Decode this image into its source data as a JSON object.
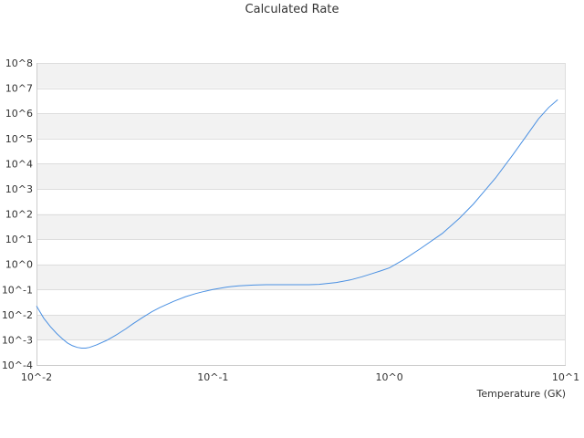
{
  "chart_data": {
    "type": "line",
    "title": "Calculated Rate",
    "xlabel": "Temperature (GK)",
    "ylabel": "",
    "x_scale": "log",
    "y_scale": "log",
    "xlim": [
      0.01,
      10
    ],
    "ylim": [
      0.0001,
      100000000
    ],
    "x_ticks": [
      "10^-2",
      "10^-1",
      "10^0",
      "10^1"
    ],
    "x_tick_values": [
      0.01,
      0.1,
      1,
      10
    ],
    "y_ticks": [
      "10^-4",
      "10^-3",
      "10^-2",
      "10^-1",
      "10^0",
      "10^1",
      "10^2",
      "10^3",
      "10^4",
      "10^5",
      "10^6",
      "10^7",
      "10^8"
    ],
    "y_tick_values": [
      0.0001,
      0.001,
      0.01,
      0.1,
      1,
      10,
      100,
      1000,
      10000,
      100000,
      1000000,
      10000000,
      100000000
    ],
    "grid": "alternating horizontal bands",
    "legend": "none",
    "series": [
      {
        "color": "#4a90e2",
        "x": [
          0.01,
          0.011,
          0.012,
          0.013,
          0.014,
          0.015,
          0.016,
          0.017,
          0.018,
          0.019,
          0.02,
          0.022,
          0.025,
          0.028,
          0.032,
          0.035,
          0.04,
          0.045,
          0.05,
          0.06,
          0.07,
          0.08,
          0.09,
          0.1,
          0.12,
          0.14,
          0.17,
          0.2,
          0.25,
          0.3,
          0.35,
          0.4,
          0.5,
          0.6,
          0.7,
          0.8,
          0.9,
          1.0,
          1.2,
          1.5,
          2.0,
          2.5,
          3.0,
          3.5,
          4.0,
          5.0,
          6.0,
          7.0,
          8.0,
          9.0
        ],
        "y": [
          0.022,
          0.0072,
          0.0033,
          0.0018,
          0.0011,
          0.00075,
          0.00058,
          0.0005,
          0.00047,
          0.00047,
          0.0005,
          0.00064,
          0.00095,
          0.0015,
          0.0027,
          0.0042,
          0.0078,
          0.013,
          0.019,
          0.034,
          0.052,
          0.069,
          0.085,
          0.1,
          0.125,
          0.14,
          0.15,
          0.155,
          0.155,
          0.155,
          0.155,
          0.16,
          0.19,
          0.24,
          0.32,
          0.43,
          0.56,
          0.72,
          1.5,
          4.2,
          17,
          68,
          250,
          900,
          2700,
          22000,
          130000,
          600000,
          1700000,
          3500000
        ]
      }
    ]
  }
}
